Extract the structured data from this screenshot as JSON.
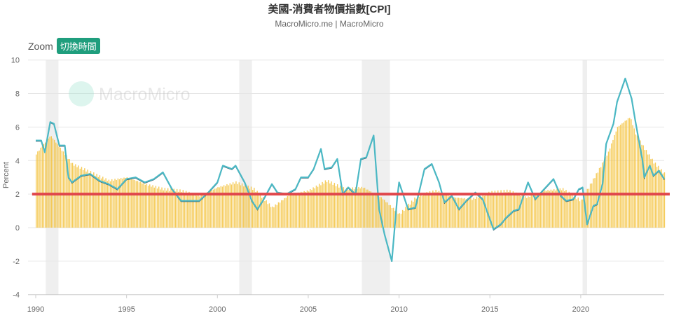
{
  "header": {
    "title": "美國-消費者物價指數[CPI]",
    "subtitle": "MacroMicro.me | MacroMicro",
    "zoom_label": "Zoom",
    "zoom_button": "切換時間",
    "watermark": "MacroMicro"
  },
  "chart_data": {
    "type": "line+bar",
    "ylabel": "Percent",
    "ylim": [
      -4,
      10
    ],
    "yticks": [
      -4,
      -2,
      0,
      2,
      4,
      6,
      8,
      10
    ],
    "xlim": [
      1989.8,
      2024.9
    ],
    "xticks": [
      1990,
      1995,
      2000,
      2005,
      2010,
      2015,
      2020
    ],
    "grid": true,
    "colors": {
      "line": "#4bb8c4",
      "bars": "#f3c23c",
      "target": "#e0474c",
      "recession": "#efefef"
    },
    "target_line": 2,
    "recessions": [
      [
        1990.55,
        1991.25
      ],
      [
        2001.2,
        2001.9
      ],
      [
        2007.95,
        2009.5
      ],
      [
        2020.1,
        2020.35
      ]
    ],
    "line": [
      [
        1990.0,
        5.2
      ],
      [
        1990.3,
        5.2
      ],
      [
        1990.5,
        4.5
      ],
      [
        1990.8,
        6.3
      ],
      [
        1991.0,
        6.2
      ],
      [
        1991.3,
        4.9
      ],
      [
        1991.6,
        4.9
      ],
      [
        1991.8,
        3.0
      ],
      [
        1992.0,
        2.7
      ],
      [
        1992.5,
        3.1
      ],
      [
        1993.0,
        3.2
      ],
      [
        1993.5,
        2.8
      ],
      [
        1994.0,
        2.6
      ],
      [
        1994.5,
        2.3
      ],
      [
        1995.0,
        2.9
      ],
      [
        1995.5,
        3.0
      ],
      [
        1996.0,
        2.7
      ],
      [
        1996.5,
        2.9
      ],
      [
        1997.0,
        3.3
      ],
      [
        1997.5,
        2.3
      ],
      [
        1998.0,
        1.6
      ],
      [
        1998.5,
        1.6
      ],
      [
        1999.0,
        1.6
      ],
      [
        1999.5,
        2.1
      ],
      [
        2000.0,
        2.7
      ],
      [
        2000.3,
        3.7
      ],
      [
        2000.8,
        3.5
      ],
      [
        2001.0,
        3.7
      ],
      [
        2001.5,
        2.7
      ],
      [
        2001.9,
        1.6
      ],
      [
        2002.2,
        1.1
      ],
      [
        2002.5,
        1.6
      ],
      [
        2003.0,
        2.6
      ],
      [
        2003.3,
        2.1
      ],
      [
        2003.8,
        2.0
      ],
      [
        2004.3,
        2.3
      ],
      [
        2004.6,
        3.0
      ],
      [
        2005.0,
        3.0
      ],
      [
        2005.3,
        3.5
      ],
      [
        2005.7,
        4.7
      ],
      [
        2005.9,
        3.5
      ],
      [
        2006.3,
        3.6
      ],
      [
        2006.6,
        4.1
      ],
      [
        2006.9,
        2.0
      ],
      [
        2007.2,
        2.4
      ],
      [
        2007.6,
        2.0
      ],
      [
        2007.9,
        4.1
      ],
      [
        2008.2,
        4.2
      ],
      [
        2008.6,
        5.5
      ],
      [
        2008.9,
        1.1
      ],
      [
        2009.2,
        -0.4
      ],
      [
        2009.6,
        -2.0
      ],
      [
        2009.9,
        1.8
      ],
      [
        2010.0,
        2.7
      ],
      [
        2010.5,
        1.1
      ],
      [
        2010.9,
        1.2
      ],
      [
        2011.4,
        3.5
      ],
      [
        2011.8,
        3.8
      ],
      [
        2012.2,
        2.7
      ],
      [
        2012.5,
        1.5
      ],
      [
        2012.9,
        1.9
      ],
      [
        2013.3,
        1.1
      ],
      [
        2013.7,
        1.6
      ],
      [
        2014.2,
        2.1
      ],
      [
        2014.6,
        1.7
      ],
      [
        2014.9,
        0.8
      ],
      [
        2015.2,
        -0.1
      ],
      [
        2015.6,
        0.2
      ],
      [
        2015.9,
        0.6
      ],
      [
        2016.3,
        1.0
      ],
      [
        2016.6,
        1.1
      ],
      [
        2017.1,
        2.7
      ],
      [
        2017.5,
        1.7
      ],
      [
        2017.9,
        2.2
      ],
      [
        2018.5,
        2.9
      ],
      [
        2018.9,
        1.9
      ],
      [
        2019.2,
        1.6
      ],
      [
        2019.6,
        1.7
      ],
      [
        2019.9,
        2.3
      ],
      [
        2020.1,
        2.4
      ],
      [
        2020.35,
        0.2
      ],
      [
        2020.7,
        1.3
      ],
      [
        2020.9,
        1.4
      ],
      [
        2021.2,
        2.6
      ],
      [
        2021.4,
        5.0
      ],
      [
        2021.8,
        6.2
      ],
      [
        2022.0,
        7.5
      ],
      [
        2022.45,
        8.9
      ],
      [
        2022.8,
        7.7
      ],
      [
        2023.0,
        6.4
      ],
      [
        2023.4,
        4.0
      ],
      [
        2023.5,
        3.0
      ],
      [
        2023.8,
        3.7
      ],
      [
        2024.0,
        3.1
      ],
      [
        2024.3,
        3.4
      ],
      [
        2024.6,
        2.9
      ]
    ],
    "bars": [
      [
        1990.0,
        4.4
      ],
      [
        1990.8,
        5.5
      ],
      [
        1991.5,
        4.5
      ],
      [
        1992.0,
        3.8
      ],
      [
        1993.0,
        3.3
      ],
      [
        1994.0,
        2.8
      ],
      [
        1995.0,
        3.0
      ],
      [
        1996.0,
        2.6
      ],
      [
        1997.0,
        2.3
      ],
      [
        1998.0,
        2.2
      ],
      [
        1999.0,
        1.9
      ],
      [
        2000.0,
        2.4
      ],
      [
        2001.0,
        2.7
      ],
      [
        2002.0,
        2.3
      ],
      [
        2003.0,
        1.2
      ],
      [
        2004.0,
        2.0
      ],
      [
        2005.0,
        2.2
      ],
      [
        2006.0,
        2.8
      ],
      [
        2007.0,
        2.3
      ],
      [
        2008.0,
        2.4
      ],
      [
        2009.0,
        1.8
      ],
      [
        2010.0,
        0.8
      ],
      [
        2011.0,
        1.9
      ],
      [
        2012.0,
        2.2
      ],
      [
        2013.0,
        1.8
      ],
      [
        2014.0,
        1.7
      ],
      [
        2015.0,
        2.1
      ],
      [
        2016.0,
        2.2
      ],
      [
        2017.0,
        1.8
      ],
      [
        2018.0,
        2.2
      ],
      [
        2019.0,
        2.3
      ],
      [
        2020.0,
        1.6
      ],
      [
        2021.0,
        3.5
      ],
      [
        2021.5,
        4.5
      ],
      [
        2022.0,
        6.0
      ],
      [
        2022.7,
        6.6
      ],
      [
        2023.0,
        5.6
      ],
      [
        2023.5,
        4.7
      ],
      [
        2024.0,
        3.9
      ],
      [
        2024.6,
        3.2
      ]
    ]
  }
}
